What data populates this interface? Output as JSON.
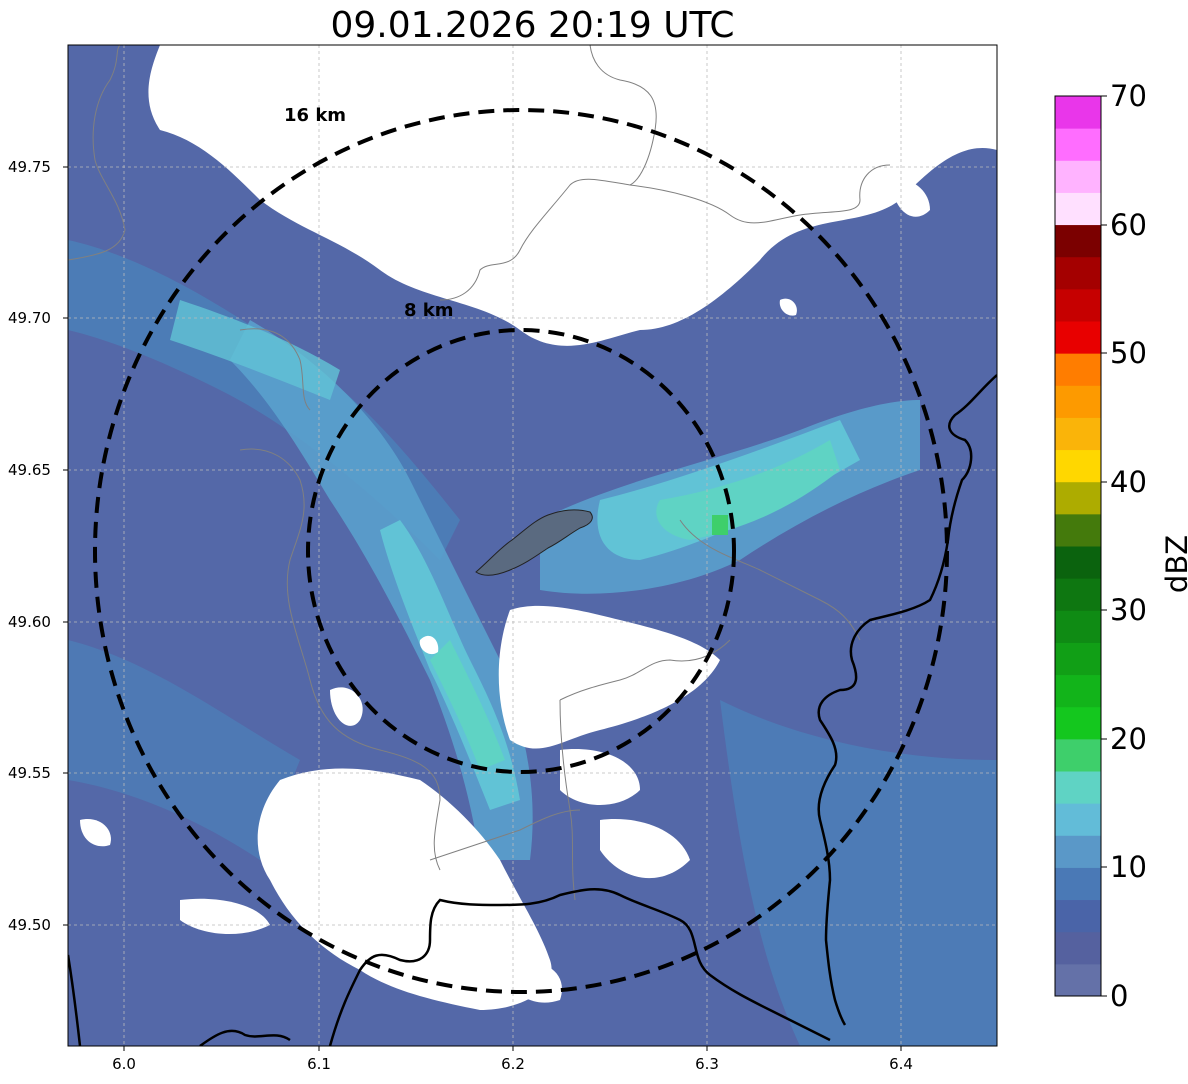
{
  "title": "09.01.2026 20:19 UTC",
  "map": {
    "lon_range": [
      5.97,
      6.45
    ],
    "lat_range": [
      49.46,
      49.79
    ],
    "x_ticks": [
      "6.0",
      "6.1",
      "6.2",
      "6.3",
      "6.4"
    ],
    "y_ticks": [
      "49.75",
      "49.70",
      "49.65",
      "49.60",
      "49.55",
      "49.50"
    ],
    "center": {
      "lon": 6.205,
      "lat": 49.623
    },
    "rings": [
      {
        "label": "8 km",
        "radius_km": 8
      },
      {
        "label": "16 km",
        "radius_km": 16
      }
    ],
    "colors": {
      "land_echo": "#5468a8",
      "no_echo": "#ffffff",
      "ring_stroke": "#000000",
      "border": "#000000",
      "admin_lines": "#808080",
      "city_fill": "#5a6a80"
    }
  },
  "colorbar": {
    "label": "dBZ",
    "min": 0,
    "max": 70,
    "tick_labels": [
      "0",
      "10",
      "20",
      "30",
      "40",
      "50",
      "60",
      "70"
    ],
    "colors": [
      "#6471a8",
      "#55619f",
      "#4a64a8",
      "#4a79b6",
      "#5a98c8",
      "#62bcd8",
      "#5fd3c4",
      "#3ecf6b",
      "#14c71e",
      "#12b41a",
      "#119f16",
      "#0f8b14",
      "#0e7711",
      "#0b630e",
      "#447a0c",
      "#adac00",
      "#ffd700",
      "#fab409",
      "#fd9a00",
      "#ff7d00",
      "#e80000",
      "#c60000",
      "#a40000",
      "#7b0000",
      "#ffe0ff",
      "#ffb3ff",
      "#ff6dff",
      "#e936ea"
    ]
  }
}
